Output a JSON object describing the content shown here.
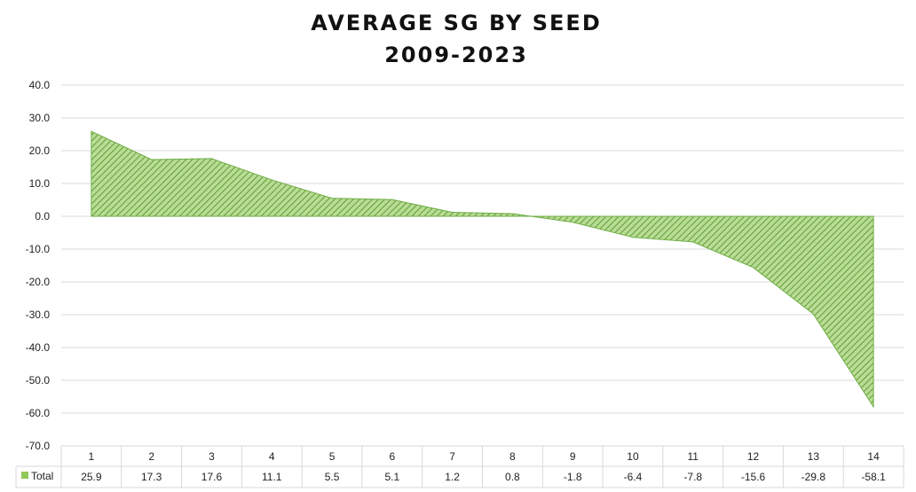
{
  "chart_data": {
    "type": "area",
    "title_line1": "AVERAGE SG BY SEED",
    "title_line2": "2009-2023",
    "categories": [
      "1",
      "2",
      "3",
      "4",
      "5",
      "6",
      "7",
      "8",
      "9",
      "10",
      "11",
      "12",
      "13",
      "14"
    ],
    "series": [
      {
        "name": "Total",
        "values": [
          25.9,
          17.3,
          17.6,
          11.1,
          5.5,
          5.1,
          1.2,
          0.8,
          -1.8,
          -6.4,
          -7.8,
          -15.6,
          -29.8,
          -58.1
        ]
      }
    ],
    "data_labels": [
      "25.9",
      "17.3",
      "17.6",
      "11.1",
      "5.5",
      "5.1",
      "1.2",
      "0.8",
      "-1.8",
      "-6.4",
      "-7.8",
      "-15.6",
      "-29.8",
      "-58.1"
    ],
    "yticks": [
      "40.0",
      "30.0",
      "20.0",
      "10.0",
      "0.0",
      "-10.0",
      "-20.0",
      "-30.0",
      "-40.0",
      "-50.0",
      "-60.0",
      "-70.0"
    ],
    "ylim": [
      -70,
      40
    ],
    "grid": true,
    "legend": "data-table",
    "colors": {
      "fill": "#92c75a",
      "stroke": "#70ad47",
      "hatch": "#5f9e36",
      "grid": "#d9d9d9"
    }
  }
}
